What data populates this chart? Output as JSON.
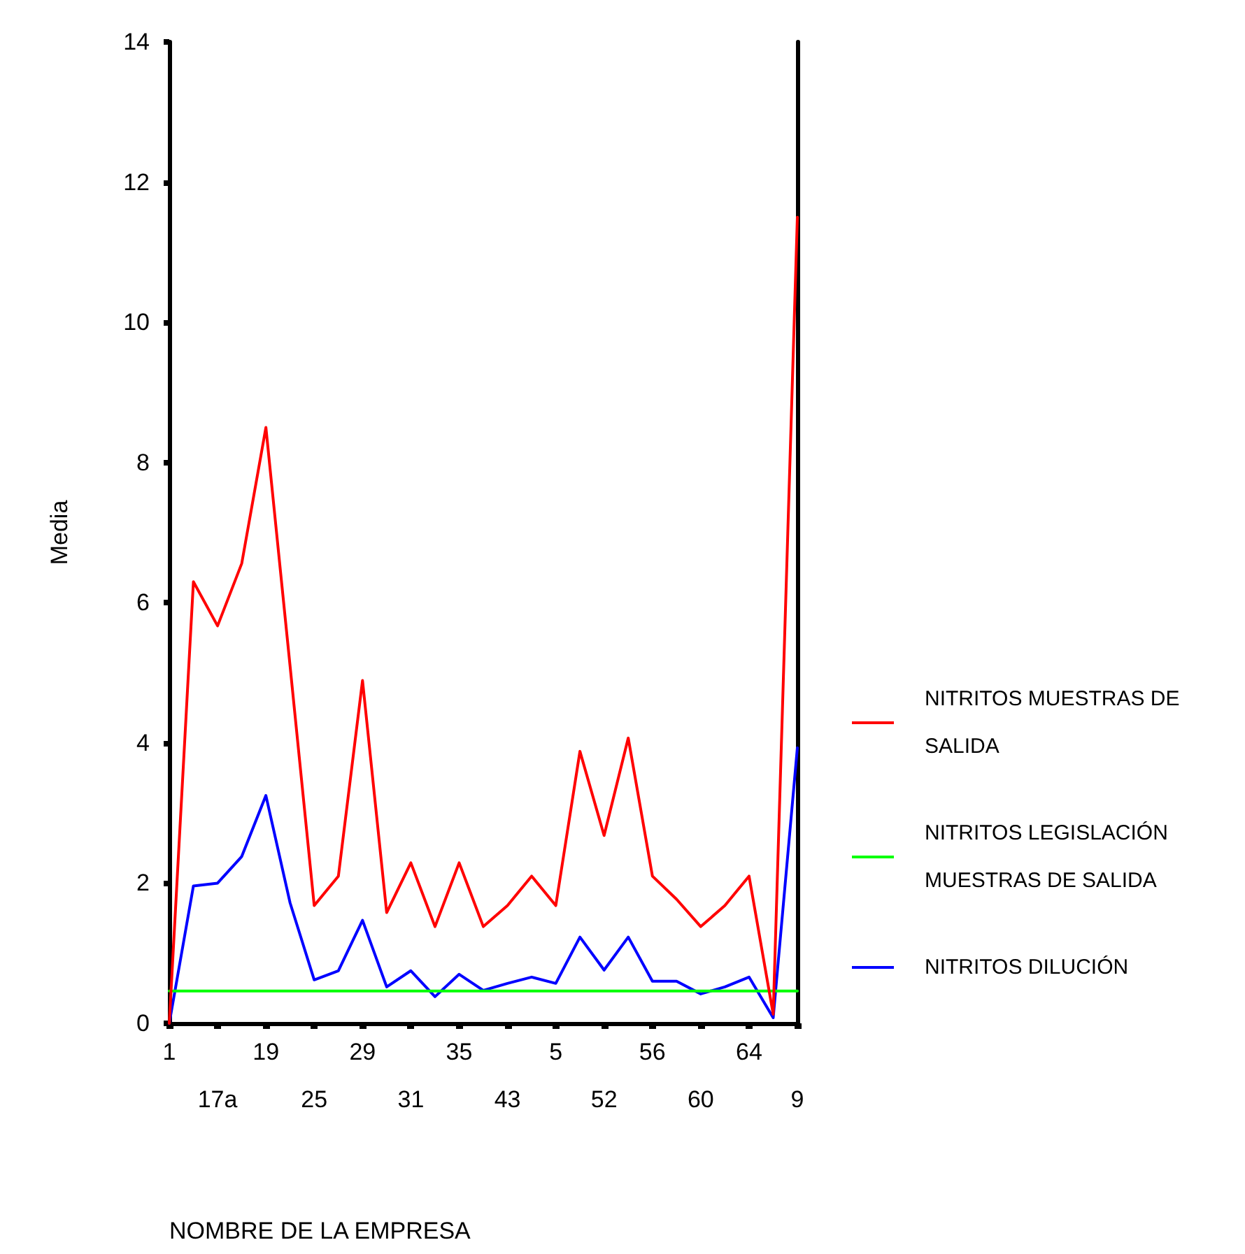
{
  "chart_data": {
    "type": "line",
    "xlabel": "NOMBRE DE LA EMPRESA",
    "ylabel": "Media",
    "categories": [
      "1",
      null,
      "17a",
      null,
      "19",
      null,
      "25",
      null,
      "29",
      null,
      "31",
      null,
      "35",
      null,
      "43",
      null,
      "5",
      null,
      "52",
      null,
      "56",
      null,
      "60",
      null,
      "64",
      null,
      "9"
    ],
    "series": [
      {
        "name": "NITRITOS MUESTRAS DE SALIDA",
        "color": "#ff0000",
        "values": [
          0,
          6.3,
          5.67,
          6.56,
          8.5,
          5.1,
          1.68,
          2.1,
          4.89,
          1.58,
          2.29,
          1.38,
          2.29,
          1.38,
          1.68,
          2.1,
          1.68,
          3.88,
          2.68,
          4.07,
          2.1,
          1.77,
          1.38,
          1.68,
          2.1,
          0.13,
          11.5
        ]
      },
      {
        "name": "NITRITOS LEGISLACIÓN MUESTRAS DE SALIDA",
        "color": "#00ff00",
        "values": [
          0.46,
          0.46,
          0.46,
          0.46,
          0.46,
          0.46,
          0.46,
          0.46,
          0.46,
          0.46,
          0.46,
          0.46,
          0.46,
          0.46,
          0.46,
          0.46,
          0.46,
          0.46,
          0.46,
          0.46,
          0.46,
          0.46,
          0.46,
          0.46,
          0.46,
          0.46,
          0.46
        ]
      },
      {
        "name": "NITRITOS DILUCIÓN",
        "color": "#0000ff",
        "values": [
          0,
          1.96,
          2.0,
          2.38,
          3.25,
          1.72,
          0.62,
          0.75,
          1.47,
          0.52,
          0.75,
          0.38,
          0.7,
          0.47,
          0.57,
          0.66,
          0.57,
          1.23,
          0.76,
          1.23,
          0.6,
          0.6,
          0.42,
          0.52,
          0.66,
          0.08,
          3.93
        ]
      }
    ],
    "ylim": [
      0,
      14
    ],
    "yticks": [
      0,
      2,
      4,
      6,
      8,
      10,
      12,
      14
    ],
    "grid": false,
    "legend": "right",
    "marker": "none",
    "line_style": "solid"
  }
}
